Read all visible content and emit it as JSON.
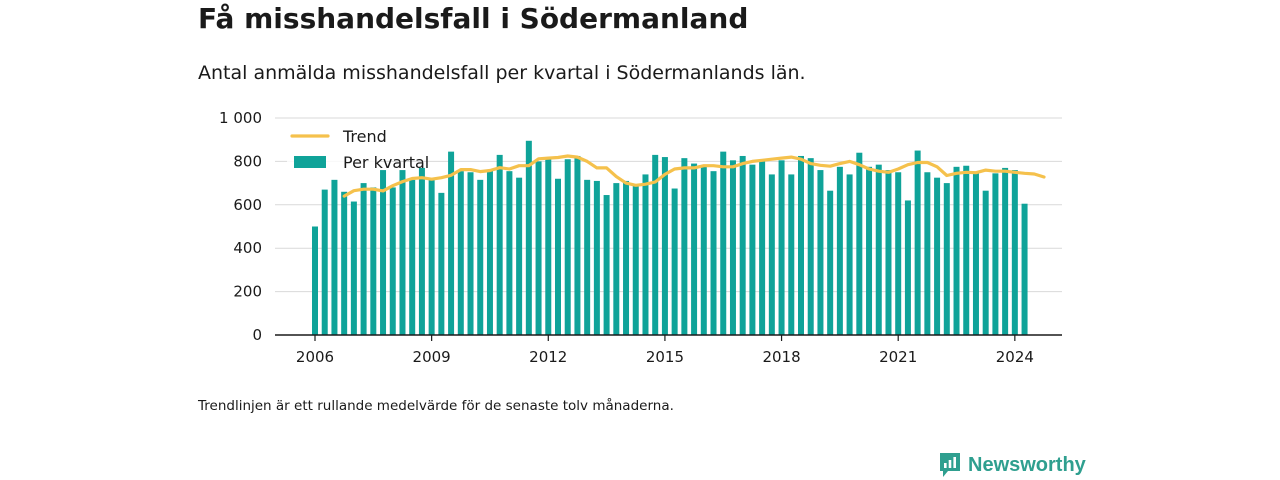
{
  "title": "Få misshandelsfall i Södermanland",
  "subtitle": "Antal anmälda misshandelsfall per kvartal i Södermanlands län.",
  "footnote": "Trendlinjen är ett rullande medelvärde för de senaste tolv månaderna.",
  "brand": {
    "name": "Newsworthy",
    "icon": "newsworthy-logo-icon",
    "color": "#2f9f8f"
  },
  "colors": {
    "bars": "#0fa399",
    "trend": "#f5c14c",
    "grid": "#d9d9d9",
    "axis": "#1a1a1a"
  },
  "chart_data": {
    "type": "bar",
    "x_start": "2006 Q1",
    "x_ticks": [
      "2006",
      "2009",
      "2012",
      "2015",
      "2018",
      "2021",
      "2024"
    ],
    "y_ticks": [
      "0",
      "200",
      "400",
      "600",
      "800",
      "1 000"
    ],
    "ylim": [
      0,
      1000
    ],
    "grid": true,
    "legend_position": "top-left",
    "series": [
      {
        "name": "Per kvartal",
        "type": "bar",
        "values": [
          500,
          670,
          715,
          660,
          615,
          700,
          680,
          760,
          680,
          760,
          715,
          770,
          715,
          655,
          845,
          755,
          750,
          715,
          760,
          830,
          755,
          725,
          895,
          800,
          820,
          720,
          810,
          825,
          715,
          710,
          645,
          700,
          710,
          695,
          740,
          830,
          820,
          675,
          815,
          790,
          775,
          755,
          845,
          805,
          825,
          785,
          800,
          740,
          805,
          740,
          825,
          815,
          760,
          665,
          775,
          740,
          840,
          775,
          785,
          760,
          750,
          620,
          850,
          750,
          725,
          700,
          775,
          780,
          745,
          665,
          745,
          770,
          760,
          605
        ]
      },
      {
        "name": "Trend",
        "type": "line",
        "start_index": 3,
        "values": [
          640,
          665,
          672,
          672,
          664,
          688,
          707,
          721,
          725,
          718,
          725,
          736,
          762,
          762,
          753,
          758,
          771,
          765,
          780,
          780,
          812,
          815,
          818,
          825,
          820,
          800,
          770,
          770,
          730,
          700,
          690,
          695,
          705,
          740,
          765,
          770,
          770,
          780,
          780,
          775,
          775,
          790,
          800,
          805,
          810,
          815,
          820,
          810,
          790,
          782,
          778,
          790,
          800,
          785,
          765,
          755,
          750,
          765,
          785,
          795,
          795,
          775,
          735,
          745,
          750,
          748,
          760,
          755,
          755,
          750,
          745,
          742,
          728
        ]
      }
    ]
  }
}
